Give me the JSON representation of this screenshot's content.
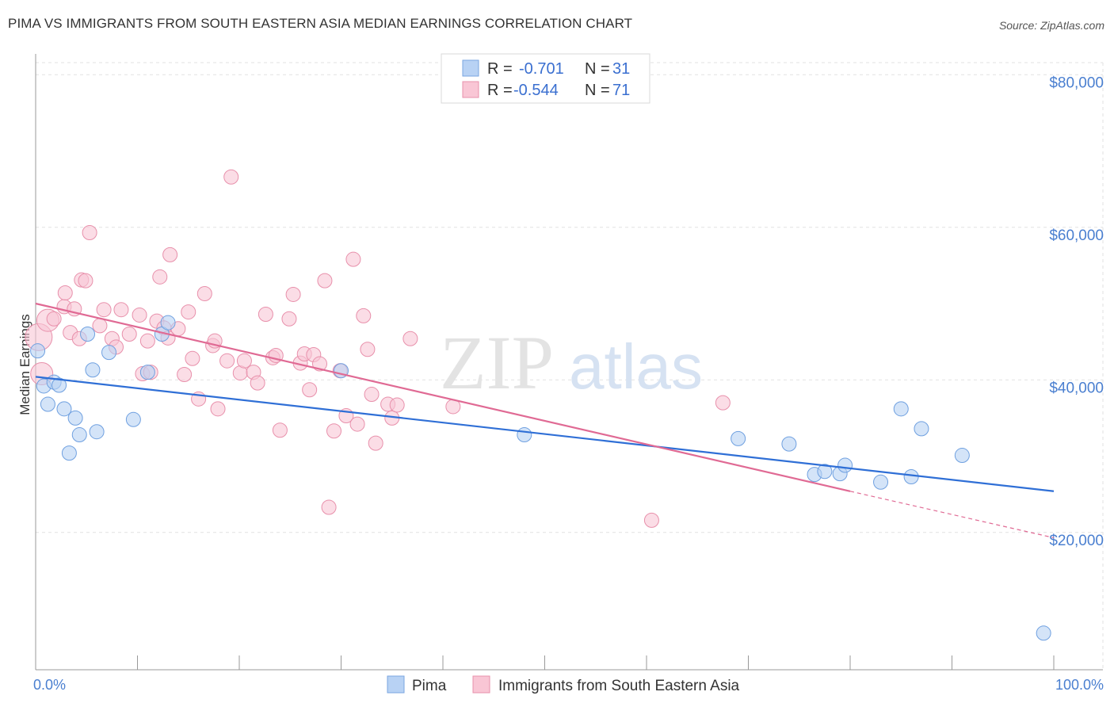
{
  "title": "PIMA VS IMMIGRANTS FROM SOUTH EASTERN ASIA MEDIAN EARNINGS CORRELATION CHART",
  "source": "Source: ZipAtlas.com",
  "watermark": {
    "zip": "ZIP",
    "atlas": "atlas"
  },
  "legend": {
    "rows": [
      {
        "r_label": "R =",
        "r_value": "-0.701",
        "n_label": "N =",
        "n_value": "31",
        "color": "#a9c8f2",
        "stroke": "#7aa6e0"
      },
      {
        "r_label": "R =",
        "r_value": "-0.544",
        "n_label": "N =",
        "n_value": "71",
        "color": "#f7bccd",
        "stroke": "#e88aa6"
      }
    ]
  },
  "bottom_legend": [
    {
      "label": "Pima",
      "color": "#a9c8f2"
    },
    {
      "label": "Immigrants from South Eastern Asia",
      "color": "#f7bccd"
    }
  ],
  "chart_data": {
    "type": "scatter",
    "title": "PIMA VS IMMIGRANTS FROM SOUTH EASTERN ASIA MEDIAN EARNINGS CORRELATION CHART",
    "xlabel": "",
    "ylabel": "Median Earnings",
    "xlim": [
      0,
      100
    ],
    "ylim": [
      2000,
      82000
    ],
    "x_tick_labels": [
      "0.0%",
      "100.0%"
    ],
    "y_ticks": [
      20000,
      40000,
      60000,
      80000
    ],
    "y_tick_labels": [
      "$20,000",
      "$40,000",
      "$60,000",
      "$80,000"
    ],
    "grid": true,
    "series": [
      {
        "name": "Pima",
        "color": "#6fa0e0",
        "fill": "#b8d2f4",
        "trend": {
          "x0": 0,
          "y0": 40400,
          "x1": 100,
          "y1": 25400,
          "color": "#2f6fd6"
        },
        "points": [
          [
            0.2,
            43800
          ],
          [
            0.8,
            39200
          ],
          [
            1.2,
            36800
          ],
          [
            1.8,
            39700
          ],
          [
            2.3,
            39300
          ],
          [
            2.8,
            36200
          ],
          [
            3.3,
            30400
          ],
          [
            3.9,
            35000
          ],
          [
            4.3,
            32800
          ],
          [
            5.1,
            46000
          ],
          [
            5.6,
            41300
          ],
          [
            6.0,
            33200
          ],
          [
            7.2,
            43600
          ],
          [
            9.6,
            34800
          ],
          [
            11.0,
            41000
          ],
          [
            12.4,
            46000
          ],
          [
            13.0,
            47500
          ],
          [
            30.0,
            41200
          ],
          [
            48.0,
            32800
          ],
          [
            69.0,
            32300
          ],
          [
            74.0,
            31600
          ],
          [
            76.5,
            27600
          ],
          [
            77.5,
            28000
          ],
          [
            79.0,
            27700
          ],
          [
            79.5,
            28800
          ],
          [
            83.0,
            26600
          ],
          [
            85.0,
            36200
          ],
          [
            86.0,
            27300
          ],
          [
            87.0,
            33600
          ],
          [
            91.0,
            30100
          ],
          [
            99.0,
            6800
          ]
        ]
      },
      {
        "name": "Immigrants from South Eastern Asia",
        "color": "#e890ab",
        "fill": "#f9c6d5",
        "trend": {
          "x0": 0,
          "y0": 50000,
          "x1": 80,
          "y1": 25400,
          "color": "#e06a94",
          "dash_to": {
            "x": 100,
            "y": 19300
          }
        },
        "points": [
          [
            0.3,
            45600
          ],
          [
            0.6,
            40800
          ],
          [
            1.2,
            47800
          ],
          [
            1.8,
            48000
          ],
          [
            2.8,
            49600
          ],
          [
            2.9,
            51400
          ],
          [
            3.4,
            46200
          ],
          [
            3.8,
            49300
          ],
          [
            4.3,
            45400
          ],
          [
            4.5,
            53100
          ],
          [
            4.9,
            53000
          ],
          [
            5.3,
            59300
          ],
          [
            6.3,
            47100
          ],
          [
            6.7,
            49200
          ],
          [
            7.5,
            45400
          ],
          [
            7.9,
            44300
          ],
          [
            8.4,
            49200
          ],
          [
            9.2,
            46000
          ],
          [
            10.2,
            48500
          ],
          [
            10.5,
            40800
          ],
          [
            11.0,
            45100
          ],
          [
            11.3,
            41000
          ],
          [
            11.9,
            47700
          ],
          [
            12.2,
            53500
          ],
          [
            12.6,
            46800
          ],
          [
            13.0,
            45500
          ],
          [
            13.2,
            56400
          ],
          [
            14.0,
            46700
          ],
          [
            14.6,
            40700
          ],
          [
            15.0,
            48900
          ],
          [
            15.4,
            42800
          ],
          [
            16.0,
            37500
          ],
          [
            16.6,
            51300
          ],
          [
            17.4,
            44500
          ],
          [
            17.6,
            45100
          ],
          [
            17.9,
            36200
          ],
          [
            18.8,
            42500
          ],
          [
            19.2,
            66600
          ],
          [
            20.1,
            40900
          ],
          [
            20.5,
            42500
          ],
          [
            21.4,
            41000
          ],
          [
            21.8,
            39600
          ],
          [
            22.6,
            48600
          ],
          [
            23.3,
            42900
          ],
          [
            23.6,
            43200
          ],
          [
            24.0,
            33400
          ],
          [
            24.9,
            48000
          ],
          [
            25.3,
            51200
          ],
          [
            26.0,
            42200
          ],
          [
            26.4,
            43400
          ],
          [
            26.9,
            38700
          ],
          [
            27.3,
            43300
          ],
          [
            27.9,
            42100
          ],
          [
            28.4,
            53000
          ],
          [
            28.8,
            23300
          ],
          [
            29.3,
            33300
          ],
          [
            29.9,
            41200
          ],
          [
            30.5,
            35300
          ],
          [
            31.2,
            55800
          ],
          [
            31.6,
            34200
          ],
          [
            32.2,
            48400
          ],
          [
            32.6,
            44000
          ],
          [
            33.0,
            38100
          ],
          [
            33.4,
            31700
          ],
          [
            34.6,
            36800
          ],
          [
            35.0,
            35000
          ],
          [
            35.5,
            36700
          ],
          [
            36.8,
            45400
          ],
          [
            41.0,
            36500
          ],
          [
            60.5,
            21600
          ],
          [
            67.5,
            37000
          ]
        ]
      }
    ]
  }
}
